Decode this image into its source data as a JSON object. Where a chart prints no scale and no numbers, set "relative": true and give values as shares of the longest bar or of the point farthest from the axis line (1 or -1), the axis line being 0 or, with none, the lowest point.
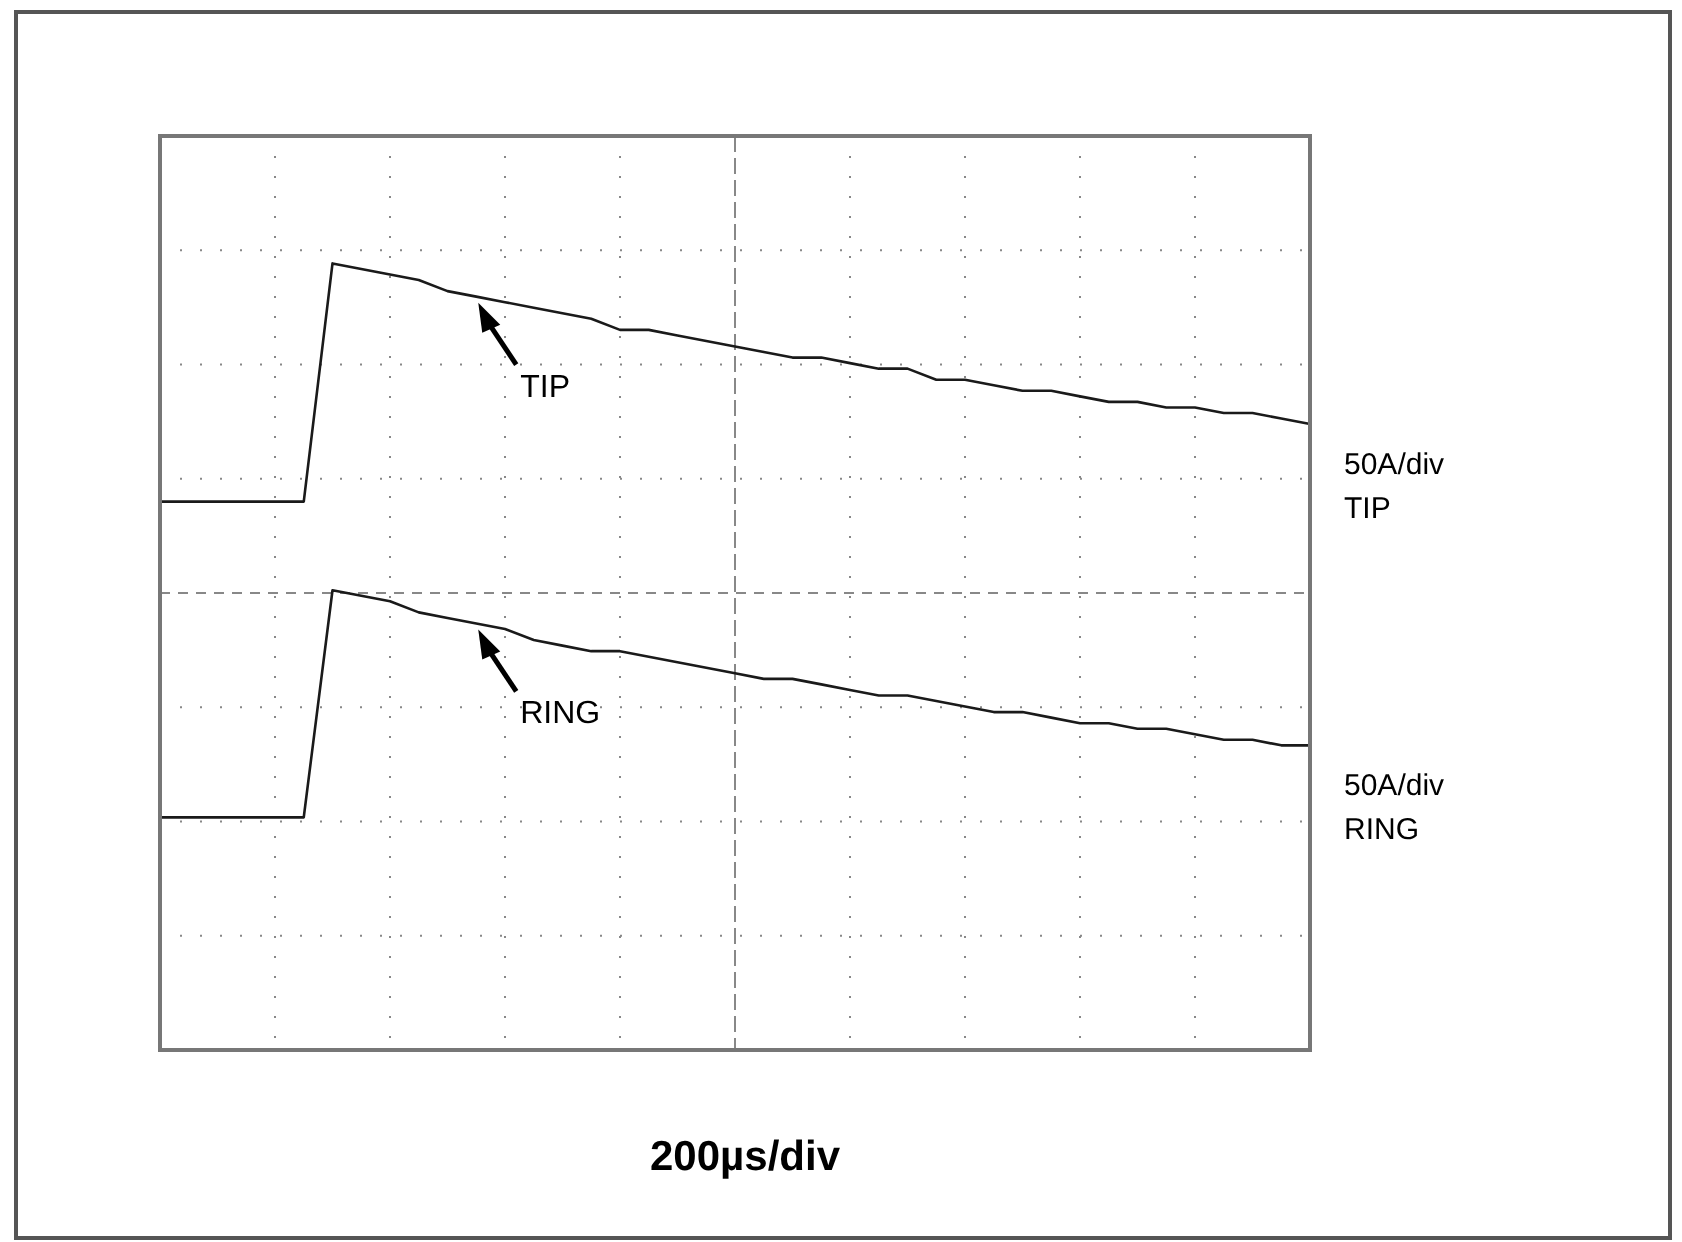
{
  "chart_data": {
    "type": "line",
    "relative": true,
    "grid": true,
    "legend": false,
    "marker": "none",
    "line_style": "solid",
    "categories": [
      null,
      null,
      null,
      null,
      null,
      null,
      null,
      null,
      null,
      null,
      null,
      null,
      null,
      null,
      null,
      null,
      null,
      null,
      null,
      null,
      null,
      null,
      null,
      null,
      null,
      null,
      null,
      null,
      null,
      null,
      null,
      null,
      null,
      null,
      null,
      null,
      null,
      null,
      null,
      null,
      null
    ],
    "series": [
      {
        "name": "TIP",
        "color": "#1a1a1a",
        "values": [
          0.57,
          0.57,
          0.57,
          0.57,
          0.57,
          0.57,
          1.0,
          0.99,
          0.98,
          0.97,
          0.95,
          0.94,
          0.93,
          0.92,
          0.91,
          0.9,
          0.88,
          0.88,
          0.87,
          0.86,
          0.85,
          0.84,
          0.83,
          0.83,
          0.82,
          0.81,
          0.81,
          0.79,
          0.79,
          0.78,
          0.77,
          0.77,
          0.76,
          0.75,
          0.75,
          0.74,
          0.74,
          0.73,
          0.73,
          0.72,
          0.71
        ]
      },
      {
        "name": "RING",
        "color": "#1a1a1a",
        "values": [
          0,
          0,
          0,
          0,
          0,
          0,
          0.41,
          0.4,
          0.39,
          0.37,
          0.36,
          0.35,
          0.34,
          0.32,
          0.31,
          0.3,
          0.3,
          0.29,
          0.28,
          0.27,
          0.26,
          0.25,
          0.25,
          0.24,
          0.23,
          0.22,
          0.22,
          0.21,
          0.2,
          0.19,
          0.19,
          0.18,
          0.17,
          0.17,
          0.16,
          0.16,
          0.15,
          0.14,
          0.14,
          0.13,
          0.13
        ]
      }
    ],
    "annotations": [
      "50A/div\nTIP",
      "50A/div\nRING",
      "200µs/div"
    ]
  }
}
